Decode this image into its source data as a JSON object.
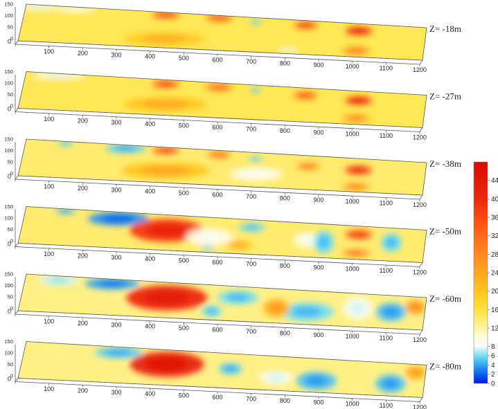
{
  "chart_data": {
    "type": "heatmap",
    "x_ticks": [
      "0",
      "100",
      "200",
      "300",
      "400",
      "500",
      "600",
      "700",
      "800",
      "900",
      "1000",
      "1100",
      "1200"
    ],
    "y_ticks": [
      "0",
      "50",
      "100",
      "150"
    ],
    "x_range": [
      0,
      1200
    ],
    "y_range": [
      0,
      160
    ],
    "colorbar": {
      "ticks": [
        "0",
        "2",
        "4",
        "6",
        "8",
        "12",
        "16",
        "20",
        "24",
        "28",
        "32",
        "36",
        "40",
        "44"
      ],
      "range": [
        0,
        48
      ],
      "stops": [
        {
          "v": 0,
          "color": "#0018e0"
        },
        {
          "v": 2,
          "color": "#0c62ee"
        },
        {
          "v": 4,
          "color": "#2ea6f2"
        },
        {
          "v": 6,
          "color": "#73dff2"
        },
        {
          "v": 8,
          "color": "#f4fbfb"
        },
        {
          "v": 10,
          "color": "#fffbe0"
        },
        {
          "v": 12,
          "color": "#fff49e"
        },
        {
          "v": 16,
          "color": "#ffe23d"
        },
        {
          "v": 20,
          "color": "#ffc320"
        },
        {
          "v": 24,
          "color": "#ffa420"
        },
        {
          "v": 28,
          "color": "#ff8a20"
        },
        {
          "v": 32,
          "color": "#ff6a16"
        },
        {
          "v": 36,
          "color": "#f84810"
        },
        {
          "v": 40,
          "color": "#ec280a"
        },
        {
          "v": 48,
          "color": "#dc0a06"
        }
      ]
    },
    "slices": [
      {
        "label": "Z= -18m",
        "background": 15,
        "features": [
          {
            "x": 40,
            "y": 150,
            "rx": 60,
            "ry": 14,
            "v": 9
          },
          {
            "x": 150,
            "y": 150,
            "rx": 60,
            "ry": 14,
            "v": 10
          },
          {
            "x": 420,
            "y": 148,
            "rx": 40,
            "ry": 14,
            "v": 34
          },
          {
            "x": 580,
            "y": 148,
            "rx": 40,
            "ry": 14,
            "v": 32
          },
          {
            "x": 690,
            "y": 140,
            "rx": 18,
            "ry": 8,
            "v": 6
          },
          {
            "x": 840,
            "y": 138,
            "rx": 35,
            "ry": 15,
            "v": 34
          },
          {
            "x": 1000,
            "y": 125,
            "rx": 40,
            "ry": 18,
            "v": 38
          },
          {
            "x": 1000,
            "y": 30,
            "rx": 40,
            "ry": 18,
            "v": 26
          },
          {
            "x": 430,
            "y": 40,
            "rx": 120,
            "ry": 30,
            "v": 19
          },
          {
            "x": 800,
            "y": 20,
            "rx": 30,
            "ry": 10,
            "v": 9
          }
        ]
      },
      {
        "label": "Z= -27m",
        "background": 15,
        "features": [
          {
            "x": 100,
            "y": 150,
            "rx": 80,
            "ry": 16,
            "v": 9
          },
          {
            "x": 420,
            "y": 140,
            "rx": 40,
            "ry": 15,
            "v": 34
          },
          {
            "x": 580,
            "y": 140,
            "rx": 40,
            "ry": 15,
            "v": 30
          },
          {
            "x": 690,
            "y": 135,
            "rx": 18,
            "ry": 8,
            "v": 6
          },
          {
            "x": 840,
            "y": 125,
            "rx": 35,
            "ry": 15,
            "v": 32
          },
          {
            "x": 1000,
            "y": 115,
            "rx": 40,
            "ry": 18,
            "v": 38
          },
          {
            "x": 1000,
            "y": 30,
            "rx": 40,
            "ry": 15,
            "v": 26
          },
          {
            "x": 430,
            "y": 50,
            "rx": 120,
            "ry": 30,
            "v": 20
          }
        ]
      },
      {
        "label": "Z= -38m",
        "background": 14,
        "features": [
          {
            "x": 120,
            "y": 150,
            "rx": 25,
            "ry": 10,
            "v": 6
          },
          {
            "x": 300,
            "y": 145,
            "rx": 60,
            "ry": 20,
            "v": 5.5
          },
          {
            "x": 420,
            "y": 145,
            "rx": 40,
            "ry": 15,
            "v": 34
          },
          {
            "x": 580,
            "y": 140,
            "rx": 35,
            "ry": 15,
            "v": 28
          },
          {
            "x": 690,
            "y": 130,
            "rx": 22,
            "ry": 10,
            "v": 6
          },
          {
            "x": 850,
            "y": 110,
            "rx": 35,
            "ry": 15,
            "v": 26
          },
          {
            "x": 1000,
            "y": 105,
            "rx": 40,
            "ry": 20,
            "v": 36
          },
          {
            "x": 1000,
            "y": 25,
            "rx": 40,
            "ry": 15,
            "v": 26
          },
          {
            "x": 430,
            "y": 55,
            "rx": 130,
            "ry": 35,
            "v": 20
          },
          {
            "x": 700,
            "y": 60,
            "rx": 80,
            "ry": 30,
            "v": 10
          }
        ]
      },
      {
        "label": "Z= -50m",
        "background": 14,
        "features": [
          {
            "x": 120,
            "y": 150,
            "rx": 30,
            "ry": 12,
            "v": 5
          },
          {
            "x": 280,
            "y": 130,
            "rx": 90,
            "ry": 30,
            "v": 3.5
          },
          {
            "x": 430,
            "y": 90,
            "rx": 110,
            "ry": 50,
            "v": 38
          },
          {
            "x": 560,
            "y": 70,
            "rx": 70,
            "ry": 40,
            "v": 10
          },
          {
            "x": 680,
            "y": 125,
            "rx": 40,
            "ry": 18,
            "v": 6
          },
          {
            "x": 850,
            "y": 80,
            "rx": 40,
            "ry": 35,
            "v": 10
          },
          {
            "x": 900,
            "y": 75,
            "rx": 30,
            "ry": 50,
            "v": 6
          },
          {
            "x": 1000,
            "y": 120,
            "rx": 40,
            "ry": 20,
            "v": 34
          },
          {
            "x": 1000,
            "y": 30,
            "rx": 40,
            "ry": 15,
            "v": 28
          },
          {
            "x": 1100,
            "y": 90,
            "rx": 30,
            "ry": 40,
            "v": 6
          },
          {
            "x": 650,
            "y": 40,
            "rx": 40,
            "ry": 20,
            "v": 20
          },
          {
            "x": 560,
            "y": 20,
            "rx": 20,
            "ry": 10,
            "v": 6
          }
        ]
      },
      {
        "label": "Z= -60m",
        "background": 13,
        "features": [
          {
            "x": 100,
            "y": 140,
            "rx": 60,
            "ry": 20,
            "v": 7.5
          },
          {
            "x": 260,
            "y": 140,
            "rx": 80,
            "ry": 25,
            "v": 4
          },
          {
            "x": 430,
            "y": 90,
            "rx": 120,
            "ry": 55,
            "v": 40
          },
          {
            "x": 640,
            "y": 110,
            "rx": 60,
            "ry": 30,
            "v": 6
          },
          {
            "x": 570,
            "y": 40,
            "rx": 30,
            "ry": 25,
            "v": 6
          },
          {
            "x": 850,
            "y": 60,
            "rx": 80,
            "ry": 40,
            "v": 6
          },
          {
            "x": 1000,
            "y": 90,
            "rx": 45,
            "ry": 50,
            "v": 9
          },
          {
            "x": 1100,
            "y": 80,
            "rx": 45,
            "ry": 40,
            "v": 5
          },
          {
            "x": 760,
            "y": 70,
            "rx": 40,
            "ry": 40,
            "v": 22
          },
          {
            "x": 1170,
            "y": 110,
            "rx": 30,
            "ry": 30,
            "v": 24
          }
        ]
      },
      {
        "label": "Z= -80m",
        "background": 13,
        "features": [
          {
            "x": 280,
            "y": 135,
            "rx": 70,
            "ry": 25,
            "v": 5.5
          },
          {
            "x": 430,
            "y": 95,
            "rx": 110,
            "ry": 55,
            "v": 42
          },
          {
            "x": 620,
            "y": 90,
            "rx": 35,
            "ry": 25,
            "v": 5.5
          },
          {
            "x": 760,
            "y": 60,
            "rx": 50,
            "ry": 30,
            "v": 9
          },
          {
            "x": 880,
            "y": 55,
            "rx": 60,
            "ry": 40,
            "v": 5
          },
          {
            "x": 1100,
            "y": 60,
            "rx": 45,
            "ry": 40,
            "v": 5
          },
          {
            "x": 1170,
            "y": 120,
            "rx": 30,
            "ry": 30,
            "v": 22
          }
        ]
      }
    ]
  }
}
